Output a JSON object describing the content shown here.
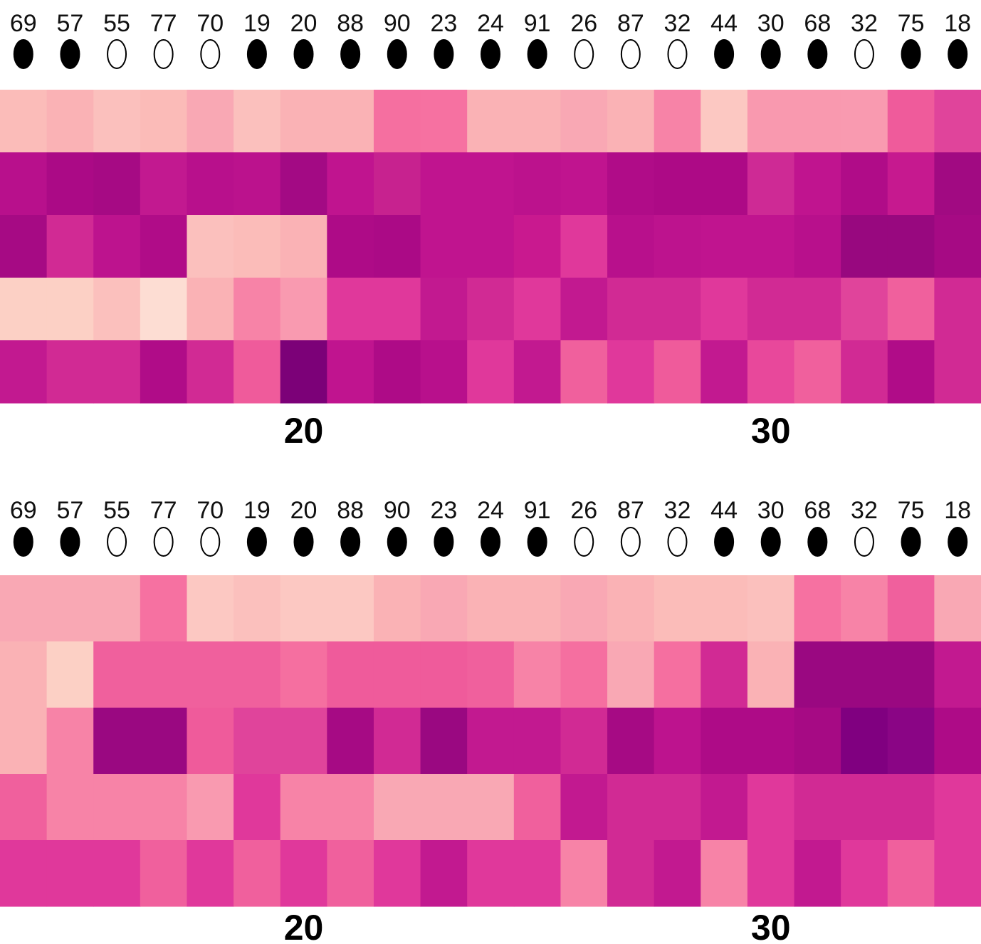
{
  "chart_data": [
    {
      "type": "heatmap",
      "column_ids": [
        "69",
        "57",
        "55",
        "77",
        "70",
        "19",
        "20",
        "88",
        "90",
        "23",
        "24",
        "91",
        "26",
        "87",
        "32",
        "44",
        "30",
        "68",
        "32",
        "75",
        "18"
      ],
      "column_markers": [
        "filled",
        "filled",
        "open",
        "open",
        "open",
        "filled",
        "filled",
        "filled",
        "filled",
        "filled",
        "filled",
        "filled",
        "open",
        "open",
        "open",
        "filled",
        "filled",
        "filled",
        "open",
        "filled",
        "filled"
      ],
      "x_tick_labels": [
        {
          "label": "20",
          "column": 6.5
        },
        {
          "label": "30",
          "column": 16.5
        }
      ],
      "colors": [
        [
          "#fbbcb9",
          "#fab2b5",
          "#fbc0bd",
          "#fbbbb8",
          "#f9a8b4",
          "#fbc0bd",
          "#fab2b5",
          "#fab2b5",
          "#f56fa0",
          "#f671a1",
          "#fab2b5",
          "#fab2b5",
          "#f9a8b4",
          "#fab2b5",
          "#f783a7",
          "#fcc8c2",
          "#f999af",
          "#f999af",
          "#f99ab0",
          "#ef5b9b",
          "#e0449b"
        ],
        [
          "#b8108c",
          "#ab0a86",
          "#a60a84",
          "#c21990",
          "#b8108c",
          "#bb128d",
          "#a30a84",
          "#c0148f",
          "#c7228f",
          "#c0148f",
          "#c0148f",
          "#bc128d",
          "#c0148f",
          "#b00c88",
          "#ad0a86",
          "#ad0a86",
          "#ce2a95",
          "#c0148f",
          "#b00c88",
          "#c6198f",
          "#a10a82"
        ],
        [
          "#a60a84",
          "#d12a94",
          "#bd138e",
          "#b00c88",
          "#fbc0bd",
          "#fbbcb9",
          "#fab2b5",
          "#ae0b87",
          "#ab0a86",
          "#c0148f",
          "#c0148f",
          "#c9198f",
          "#e0389b",
          "#b8108c",
          "#bd138e",
          "#c0148f",
          "#c0148f",
          "#b8108c",
          "#98087f",
          "#98087f",
          "#a60a84"
        ],
        [
          "#fcd0c5",
          "#fcd0c5",
          "#fbc0bd",
          "#fdddd3",
          "#fab2b5",
          "#f783a7",
          "#f99ab0",
          "#e0389b",
          "#e0389b",
          "#c21990",
          "#d12a94",
          "#e0389b",
          "#c21990",
          "#d12a94",
          "#d12a94",
          "#e0389b",
          "#d12a94",
          "#d12a94",
          "#e0449b",
          "#f0609d",
          "#d12a94"
        ],
        [
          "#c21990",
          "#d12a94",
          "#d12a94",
          "#b00c88",
          "#d12a94",
          "#ef5b9b",
          "#7c0178",
          "#c0148f",
          "#ae0b87",
          "#b8108c",
          "#e0389b",
          "#c21990",
          "#f0609d",
          "#e0389b",
          "#ef5b9b",
          "#c21990",
          "#e8489b",
          "#f0609d",
          "#d12a94",
          "#b00c88",
          "#d12a94"
        ]
      ]
    },
    {
      "type": "heatmap",
      "column_ids": [
        "69",
        "57",
        "55",
        "77",
        "70",
        "19",
        "20",
        "88",
        "90",
        "23",
        "24",
        "91",
        "26",
        "87",
        "32",
        "44",
        "30",
        "68",
        "32",
        "75",
        "18"
      ],
      "column_markers": [
        "filled",
        "filled",
        "open",
        "open",
        "open",
        "filled",
        "filled",
        "filled",
        "filled",
        "filled",
        "filled",
        "filled",
        "open",
        "open",
        "open",
        "filled",
        "filled",
        "filled",
        "open",
        "filled",
        "filled"
      ],
      "x_tick_labels": [
        {
          "label": "20",
          "column": 6.5
        },
        {
          "label": "30",
          "column": 16.5
        }
      ],
      "colors": [
        [
          "#f9a8b4",
          "#f9a8b4",
          "#f9a8b4",
          "#f671a1",
          "#fcc8c2",
          "#fbc0bd",
          "#fcc8c2",
          "#fcc8c2",
          "#fab2b5",
          "#f9a8b4",
          "#fab2b5",
          "#fab2b5",
          "#f9a8b4",
          "#fab2b5",
          "#fbbcb9",
          "#fbbcb9",
          "#fbc0bd",
          "#f671a1",
          "#f783a7",
          "#f0609d",
          "#f9a8b4"
        ],
        [
          "#fab2b5",
          "#fcd0c5",
          "#f0609d",
          "#f0609d",
          "#f0609d",
          "#f0609d",
          "#f56fa0",
          "#ef5b9b",
          "#ef5b9b",
          "#ef5b9b",
          "#f0609d",
          "#f783a7",
          "#f56fa0",
          "#f9a8b4",
          "#f56fa0",
          "#d12a94",
          "#fab2b5",
          "#9a0881",
          "#9a0881",
          "#9a0881",
          "#c21990"
        ],
        [
          "#fab2b5",
          "#f783a7",
          "#9a0881",
          "#9a0881",
          "#ef5b9b",
          "#e0449b",
          "#e0449b",
          "#a60a84",
          "#d12a94",
          "#9a0881",
          "#c21990",
          "#c21990",
          "#d12a94",
          "#a60a84",
          "#bd138e",
          "#ae0b87",
          "#ae0b87",
          "#a60a84",
          "#800080",
          "#8a0585",
          "#ae0b87"
        ],
        [
          "#f0609d",
          "#f783a7",
          "#f783a7",
          "#f783a7",
          "#f99ab0",
          "#e0389b",
          "#f783a7",
          "#f783a7",
          "#f9a8b4",
          "#f9a8b4",
          "#f9a8b4",
          "#f0609d",
          "#c21990",
          "#d12a94",
          "#d12a94",
          "#c21990",
          "#e0389b",
          "#d12a94",
          "#d12a94",
          "#d12a94",
          "#e0389b"
        ],
        [
          "#e0389b",
          "#e0389b",
          "#e0389b",
          "#f0609d",
          "#e0389b",
          "#f0609d",
          "#e0389b",
          "#f0609d",
          "#e0389b",
          "#c21990",
          "#e0389b",
          "#e0389b",
          "#f783a7",
          "#d12a94",
          "#c21990",
          "#f783a7",
          "#e0389b",
          "#c21990",
          "#e0389b",
          "#f0609d",
          "#e0389b"
        ]
      ]
    }
  ]
}
